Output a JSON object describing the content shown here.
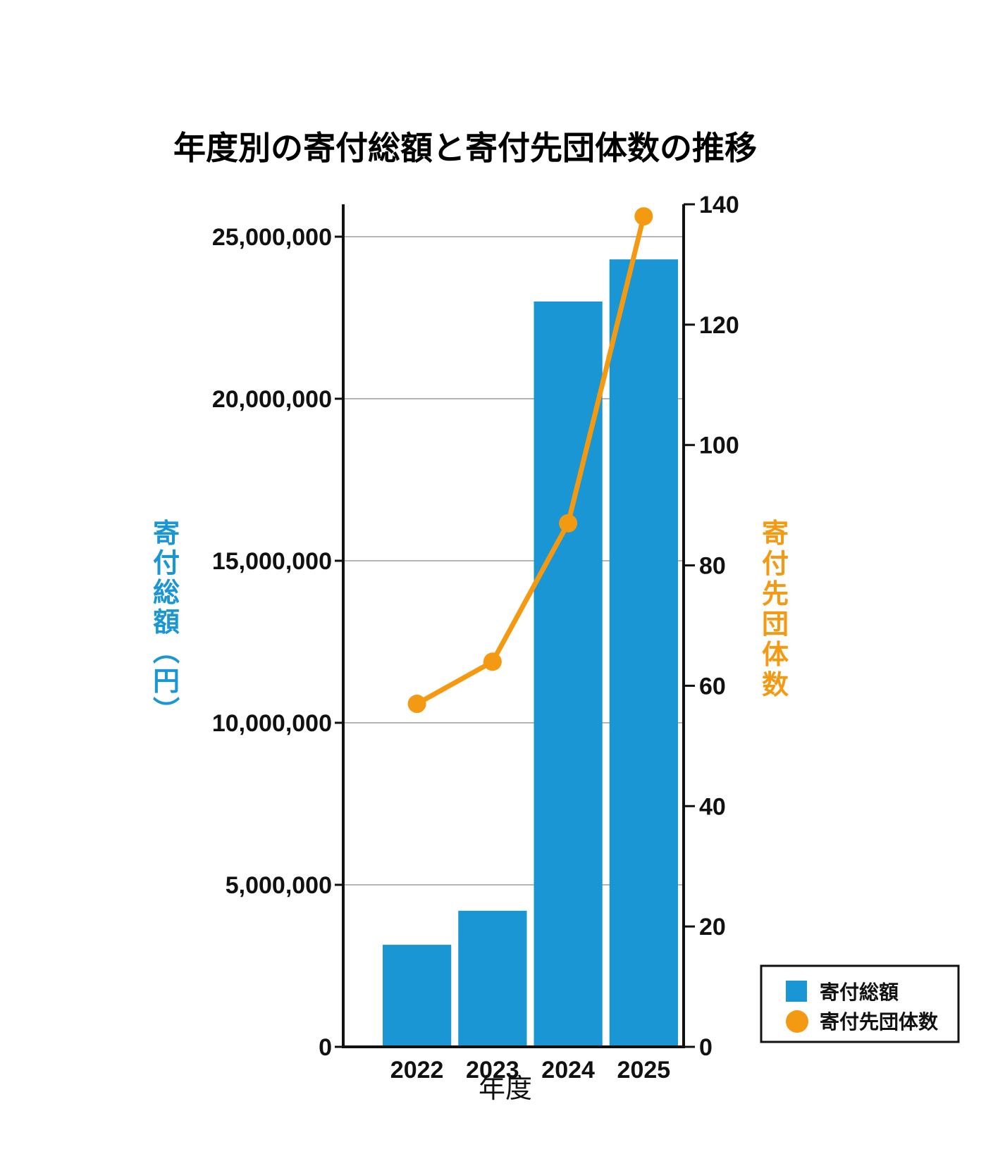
{
  "chart_data": {
    "type": "bar",
    "title": "年度別の寄付総額と寄付先団体数の推移",
    "xlabel": "年度",
    "ylabel_left": "寄付総額（円）",
    "ylabel_right": "寄付先団体数",
    "categories": [
      "2022",
      "2023",
      "2024",
      "2025"
    ],
    "series": [
      {
        "name": "寄付総額",
        "type": "bar",
        "axis": "left",
        "color": "#1b96d4",
        "values": [
          3150000,
          4200000,
          23000000,
          24300000
        ]
      },
      {
        "name": "寄付先団体数",
        "type": "line",
        "axis": "right",
        "color": "#f39a12",
        "values": [
          57,
          64,
          87,
          138
        ]
      }
    ],
    "ylim_left": [
      0,
      26000000
    ],
    "ylim_right": [
      0,
      140
    ],
    "yticks_left": [
      "0",
      "5,000,000",
      "10,000,000",
      "15,000,000",
      "20,000,000",
      "25,000,000"
    ],
    "yticks_left_values": [
      0,
      5000000,
      10000000,
      15000000,
      20000000,
      25000000
    ],
    "yticks_right": [
      "0",
      "20",
      "40",
      "60",
      "80",
      "100",
      "120",
      "140"
    ],
    "yticks_right_values": [
      0,
      20,
      40,
      60,
      80,
      100,
      120,
      140
    ],
    "grid": true,
    "legend_position": "bottom-right"
  }
}
